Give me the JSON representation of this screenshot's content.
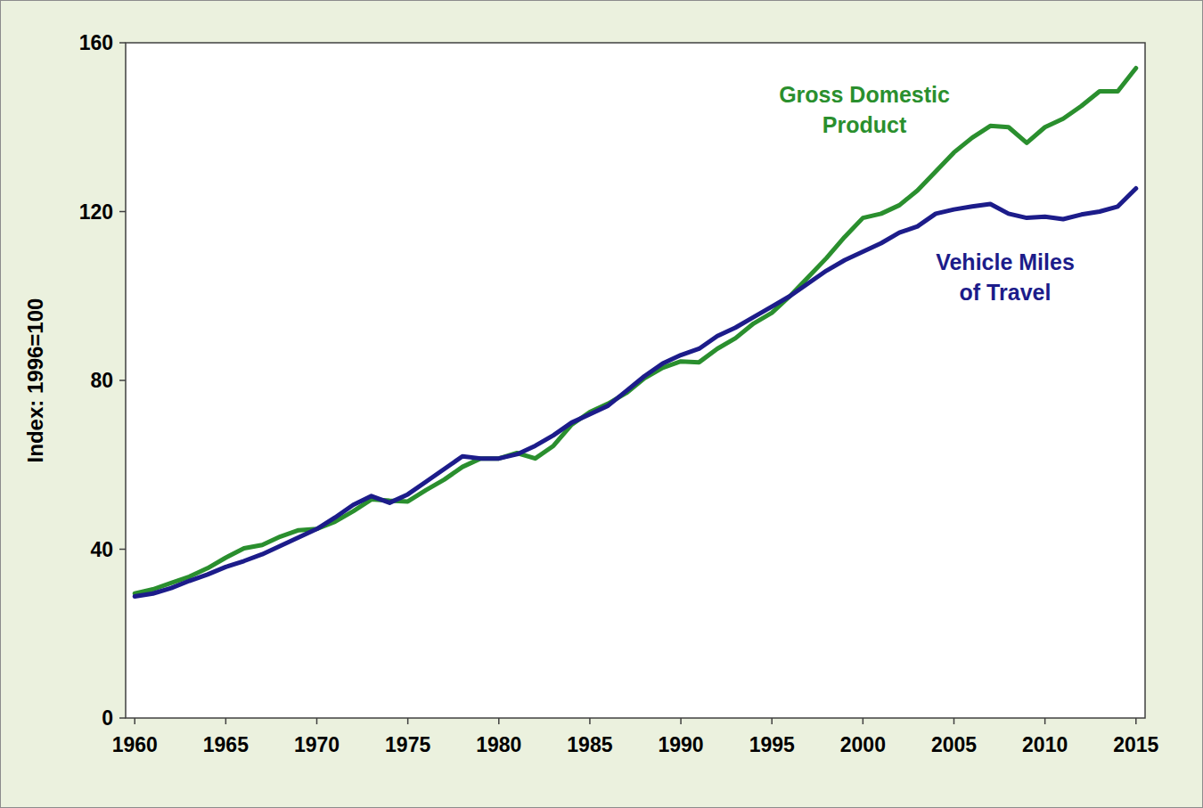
{
  "chart_data": {
    "type": "line",
    "y_label": "Index: 1996=100",
    "x": [
      1960,
      1961,
      1962,
      1963,
      1964,
      1965,
      1966,
      1967,
      1968,
      1969,
      1970,
      1971,
      1972,
      1973,
      1974,
      1975,
      1976,
      1977,
      1978,
      1979,
      1980,
      1981,
      1982,
      1983,
      1984,
      1985,
      1986,
      1987,
      1988,
      1989,
      1990,
      1991,
      1992,
      1993,
      1994,
      1995,
      1996,
      1997,
      1998,
      1999,
      2000,
      2001,
      2002,
      2003,
      2004,
      2005,
      2006,
      2007,
      2008,
      2009,
      2010,
      2011,
      2012,
      2013,
      2014,
      2015
    ],
    "series": [
      {
        "name": "Gross Domestic Product",
        "color": "#2a8f2e",
        "values": [
          29.5,
          30.5,
          32,
          33.5,
          35.5,
          38,
          40.2,
          41,
          43,
          44.5,
          44.8,
          46.5,
          49,
          51.8,
          51.5,
          51.3,
          54,
          56.5,
          59.5,
          61.5,
          61.5,
          62.8,
          61.5,
          64.5,
          69.5,
          72.5,
          74.5,
          77,
          80.5,
          83,
          84.5,
          84.3,
          87.5,
          90,
          93.5,
          96,
          100,
          104.5,
          109,
          114,
          118.5,
          119.5,
          121.5,
          125,
          129.5,
          134,
          137.5,
          140.3,
          140,
          136.3,
          140,
          142,
          145,
          148.5,
          148.5,
          154
        ]
      },
      {
        "name": "Vehicle Miles of Travel",
        "color": "#1c1c8a",
        "values": [
          28.8,
          29.5,
          30.8,
          32.5,
          34,
          35.8,
          37.2,
          38.8,
          40.8,
          42.8,
          44.8,
          47.5,
          50.5,
          52.6,
          51,
          53,
          56,
          59,
          62,
          61.5,
          61.5,
          62.5,
          64.5,
          67,
          70,
          72,
          74,
          77.5,
          81,
          84,
          86,
          87.5,
          90.5,
          92.5,
          95,
          97.5,
          100,
          103,
          106,
          108.5,
          110.5,
          112.5,
          115,
          116.5,
          119.5,
          120.5,
          121.2,
          121.8,
          119.5,
          118.5,
          118.8,
          118.2,
          119.3,
          120,
          121.2,
          125.5
        ]
      }
    ],
    "xlim": [
      1959.5,
      2015.5
    ],
    "xticks": [
      1960,
      1965,
      1970,
      1975,
      1980,
      1985,
      1990,
      1995,
      2000,
      2005,
      2010,
      2015
    ],
    "ylim": [
      0,
      160
    ],
    "yticks": [
      0,
      40,
      80,
      120,
      160
    ],
    "grid": false
  }
}
